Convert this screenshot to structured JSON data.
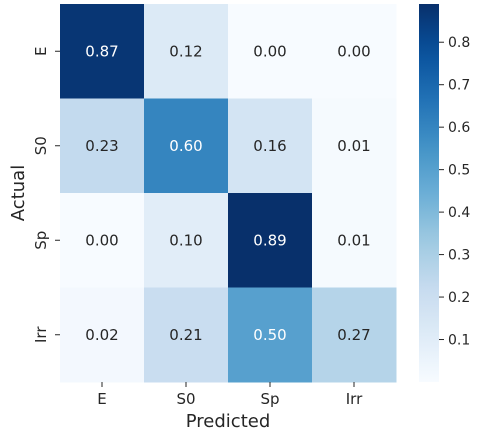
{
  "chart_data": {
    "type": "heatmap",
    "title": "",
    "xlabel": "Predicted",
    "ylabel": "Actual",
    "x_categories": [
      "E",
      "S0",
      "Sp",
      "Irr"
    ],
    "y_categories": [
      "E",
      "S0",
      "Sp",
      "Irr"
    ],
    "values": [
      [
        0.87,
        0.12,
        0.0,
        0.0
      ],
      [
        0.23,
        0.6,
        0.16,
        0.01
      ],
      [
        0.0,
        0.1,
        0.89,
        0.01
      ],
      [
        0.02,
        0.21,
        0.5,
        0.27
      ]
    ],
    "value_labels": [
      [
        "0.87",
        "0.12",
        "0.00",
        "0.00"
      ],
      [
        "0.23",
        "0.60",
        "0.16",
        "0.01"
      ],
      [
        "0.00",
        "0.10",
        "0.89",
        "0.01"
      ],
      [
        "0.02",
        "0.21",
        "0.50",
        "0.27"
      ]
    ],
    "colormap": "Blues",
    "colorbar": {
      "range": [
        0.0,
        0.89
      ],
      "ticks": [
        0.1,
        0.2,
        0.3,
        0.4,
        0.5,
        0.6,
        0.7,
        0.8
      ],
      "tick_labels": [
        "0.1",
        "0.2",
        "0.3",
        "0.4",
        "0.5",
        "0.6",
        "0.7",
        "0.8"
      ]
    },
    "grid": false,
    "legend": "colorbar-right",
    "colors": {
      "low": "#f7fbff",
      "high": "#08306b",
      "text_dark": "#262626",
      "text_light": "#ffffff"
    }
  }
}
